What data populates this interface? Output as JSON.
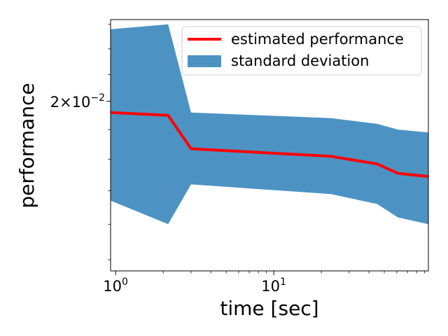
{
  "chart_data": {
    "type": "area",
    "xlabel": "time [sec]",
    "ylabel": "performance",
    "xscale": "log",
    "yscale": "log",
    "xlim": [
      0.93,
      95
    ],
    "ylim": [
      0.0147,
      0.0232
    ],
    "x_ticks": [
      {
        "value": 1,
        "base": "10",
        "exp": "0"
      },
      {
        "value": 10,
        "base": "10",
        "exp": "1"
      }
    ],
    "y_ticks": [
      {
        "value": 0.02,
        "mant": "2",
        "base": "10",
        "exp": "−2"
      }
    ],
    "x": [
      0.93,
      2.15,
      3.0,
      23.0,
      45.0,
      61.0,
      95.0
    ],
    "series": [
      {
        "name": "estimated performance",
        "kind": "line",
        "color": "#ff0000",
        "values": [
          0.0196,
          0.0195,
          0.01835,
          0.0181,
          0.01785,
          0.01755,
          0.01745
        ]
      },
      {
        "name": "standard deviation",
        "kind": "band",
        "color": "#4c93c4",
        "upper": [
          0.0228,
          0.023,
          0.0196,
          0.0194,
          0.0192,
          0.019,
          0.0189
        ],
        "lower": [
          0.0167,
          0.016,
          0.0172,
          0.0169,
          0.0166,
          0.0162,
          0.016
        ]
      }
    ],
    "legend": "top-right",
    "grid": false
  }
}
